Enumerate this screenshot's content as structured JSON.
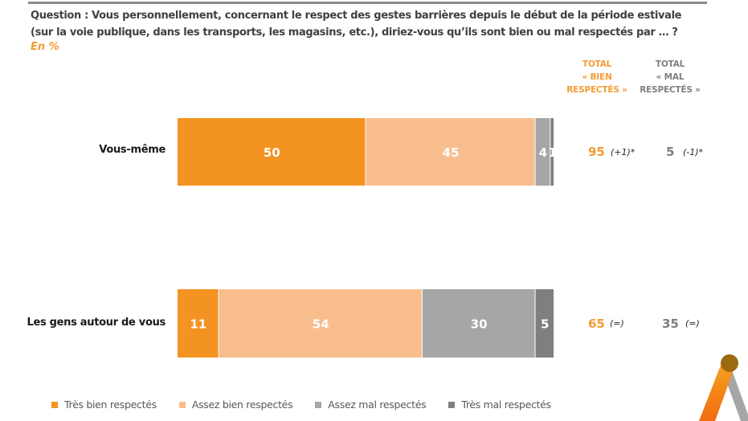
{
  "header": {
    "question": "Question : Vous personnellement, concernant le respect des gestes barrières depuis le début de la période estivale (sur la voie publique, dans les transports, les magasins, etc.), diriez-vous qu’ils sont bien ou mal respectés par … ?",
    "unit": "En %"
  },
  "columns": {
    "total_bien": [
      "TOTAL",
      "« BIEN",
      "RESPECTÉS »"
    ],
    "total_mal": [
      "TOTAL",
      "« MAL",
      "RESPECTÉS »"
    ]
  },
  "colors": {
    "tres_bien": "#f39322",
    "assez_bien": "#f8be8e",
    "assez_mal": "#a6a6a6",
    "tres_mal": "#7f7f7f",
    "accent": "#f39c33"
  },
  "chart_data": {
    "type": "bar",
    "orientation": "horizontal",
    "stacked": true,
    "title": "Question : Vous personnellement, concernant le respect des gestes barrières depuis le début de la période estivale (sur la voie publique, dans les transports, les magasins, etc.), diriez-vous qu’ils sont bien ou mal respectés par … ?",
    "subtitle": "En %",
    "xlabel": "",
    "ylabel": "",
    "xlim": [
      0,
      100
    ],
    "grid": false,
    "legend_position": "bottom",
    "categories": [
      "Vous-même",
      "Les gens autour de vous"
    ],
    "series": [
      {
        "name": "Très bien respectés",
        "values": [
          50,
          11
        ],
        "labels": [
          "50",
          "11"
        ]
      },
      {
        "name": "Assez bien respectés",
        "values": [
          45,
          54
        ],
        "labels": [
          "45",
          "54"
        ]
      },
      {
        "name": "Assez mal respectés",
        "values": [
          4,
          30
        ],
        "labels": [
          "4",
          "30"
        ]
      },
      {
        "name": "Très mal respectés",
        "values": [
          1,
          5
        ],
        "labels": [
          "1",
          "5"
        ]
      }
    ],
    "totals": [
      {
        "bien": "95",
        "bien_delta": "(+1)*",
        "mal": "5",
        "mal_delta": "(-1)*"
      },
      {
        "bien": "65",
        "bien_delta": "(=)",
        "mal": "35",
        "mal_delta": "(=)"
      }
    ]
  },
  "legend": [
    {
      "label": "Très bien respectés"
    },
    {
      "label": "Assez bien respectés"
    },
    {
      "label": "Assez mal respectés"
    },
    {
      "label": "Très mal respectés"
    }
  ]
}
